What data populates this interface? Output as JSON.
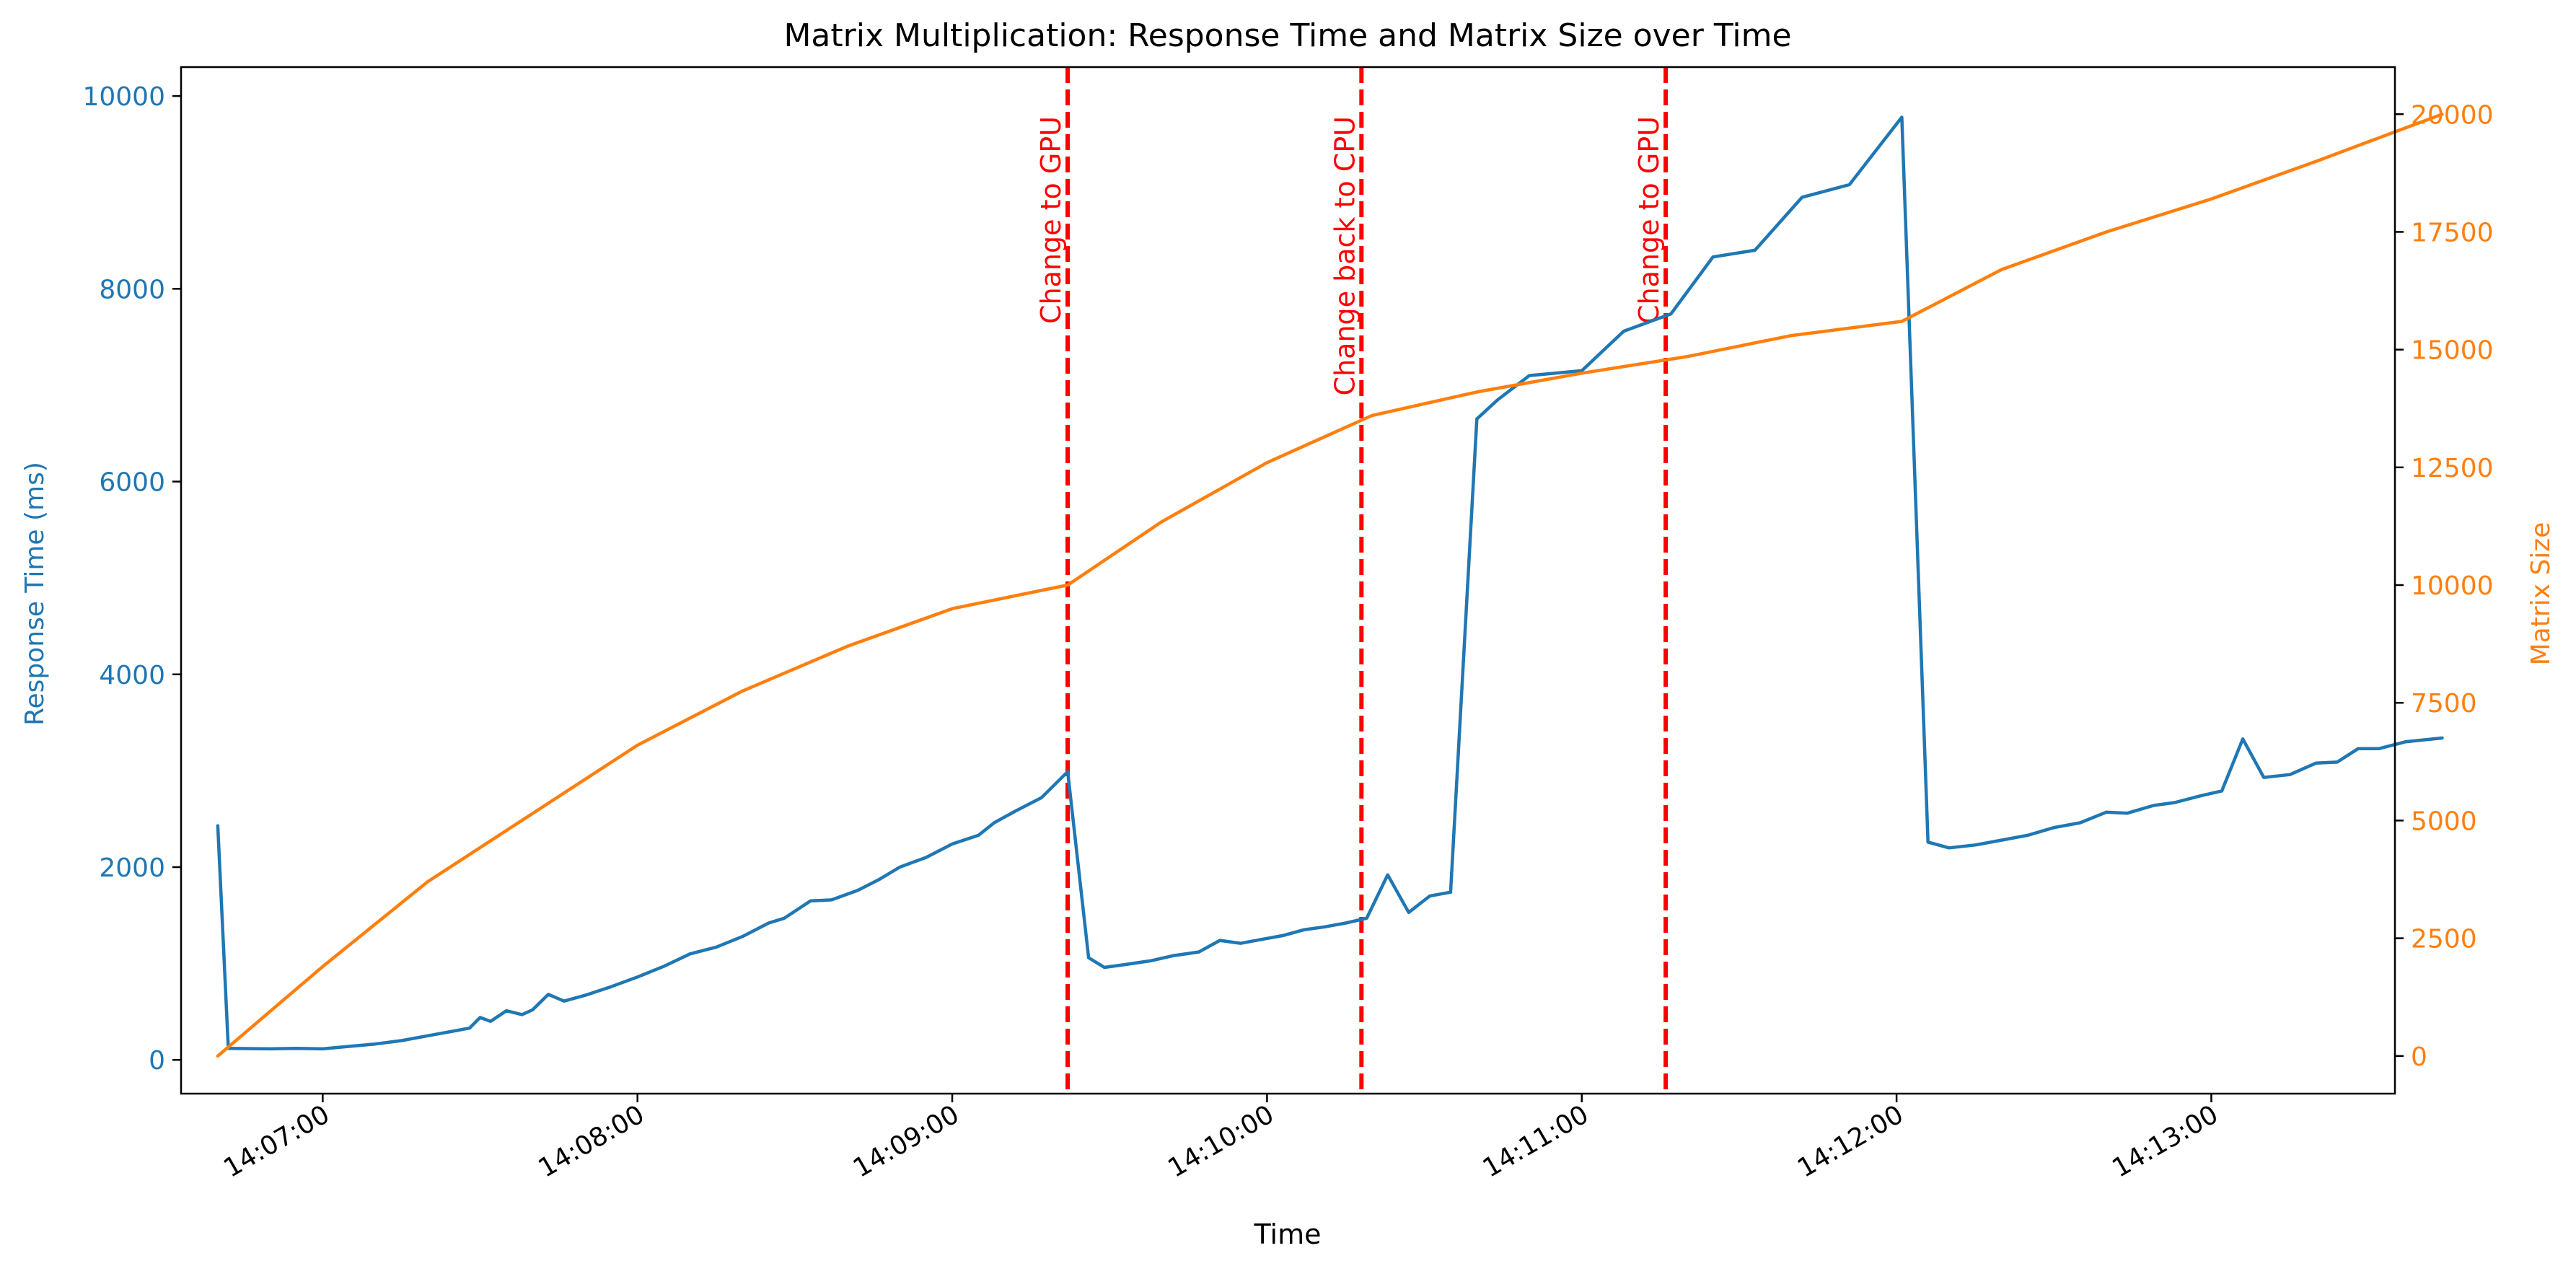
{
  "chart_data": {
    "type": "line",
    "title": "Matrix Multiplication: Response Time and Matrix Size over Time",
    "xlabel": "Time",
    "ylabel_left": "Response Time (ms)",
    "ylabel_right": "Matrix Size",
    "x_ticks": [
      "14:07:00",
      "14:08:00",
      "14:09:00",
      "14:10:00",
      "14:11:00",
      "14:12:00",
      "14:13:00"
    ],
    "x_range": [
      "14:06:33",
      "14:13:35"
    ],
    "ylim_left": [
      -350,
      10300
    ],
    "ylim_right": [
      -800,
      21000
    ],
    "y_ticks_left": [
      0,
      2000,
      4000,
      6000,
      8000,
      10000
    ],
    "y_ticks_right": [
      0,
      2500,
      5000,
      7500,
      10000,
      12500,
      15000,
      17500,
      20000
    ],
    "grid": false,
    "colors": {
      "left": "#1f77b4",
      "right": "#ff7f0e",
      "events": "#ff0000"
    },
    "series": [
      {
        "name": "Response Time (ms)",
        "axis": "left",
        "color": "#1f77b4",
        "points": [
          [
            "14:06:40",
            2430
          ],
          [
            "14:06:42",
            120
          ],
          [
            "14:06:50",
            115
          ],
          [
            "14:06:55",
            120
          ],
          [
            "14:07:00",
            115
          ],
          [
            "14:07:05",
            140
          ],
          [
            "14:07:10",
            165
          ],
          [
            "14:07:15",
            200
          ],
          [
            "14:07:20",
            250
          ],
          [
            "14:07:25",
            300
          ],
          [
            "14:07:28",
            330
          ],
          [
            "14:07:30",
            440
          ],
          [
            "14:07:32",
            400
          ],
          [
            "14:07:35",
            510
          ],
          [
            "14:07:38",
            470
          ],
          [
            "14:07:40",
            520
          ],
          [
            "14:07:43",
            680
          ],
          [
            "14:07:46",
            610
          ],
          [
            "14:07:50",
            670
          ],
          [
            "14:07:55",
            760
          ],
          [
            "14:08:00",
            860
          ],
          [
            "14:08:05",
            970
          ],
          [
            "14:08:10",
            1100
          ],
          [
            "14:08:15",
            1170
          ],
          [
            "14:08:20",
            1280
          ],
          [
            "14:08:25",
            1420
          ],
          [
            "14:08:28",
            1470
          ],
          [
            "14:08:33",
            1650
          ],
          [
            "14:08:37",
            1660
          ],
          [
            "14:08:42",
            1760
          ],
          [
            "14:08:46",
            1870
          ],
          [
            "14:08:50",
            2000
          ],
          [
            "14:08:55",
            2100
          ],
          [
            "14:09:00",
            2240
          ],
          [
            "14:09:05",
            2330
          ],
          [
            "14:09:08",
            2460
          ],
          [
            "14:09:12",
            2580
          ],
          [
            "14:09:17",
            2720
          ],
          [
            "14:09:22",
            2990
          ],
          [
            "14:09:26",
            1060
          ],
          [
            "14:09:29",
            960
          ],
          [
            "14:09:33",
            990
          ],
          [
            "14:09:38",
            1030
          ],
          [
            "14:09:42",
            1080
          ],
          [
            "14:09:47",
            1120
          ],
          [
            "14:09:51",
            1240
          ],
          [
            "14:09:55",
            1210
          ],
          [
            "14:09:59",
            1250
          ],
          [
            "14:10:03",
            1290
          ],
          [
            "14:10:07",
            1350
          ],
          [
            "14:10:11",
            1380
          ],
          [
            "14:10:15",
            1420
          ],
          [
            "14:10:19",
            1470
          ],
          [
            "14:10:23",
            1920
          ],
          [
            "14:10:27",
            1530
          ],
          [
            "14:10:31",
            1700
          ],
          [
            "14:10:35",
            1740
          ],
          [
            "14:10:40",
            6650
          ],
          [
            "14:10:44",
            6850
          ],
          [
            "14:10:50",
            7100
          ],
          [
            "14:11:00",
            7150
          ],
          [
            "14:11:08",
            7560
          ],
          [
            "14:11:17",
            7740
          ],
          [
            "14:11:25",
            8330
          ],
          [
            "14:11:33",
            8400
          ],
          [
            "14:11:42",
            8950
          ],
          [
            "14:11:51",
            9080
          ],
          [
            "14:12:01",
            9780
          ],
          [
            "14:12:06",
            2260
          ],
          [
            "14:12:10",
            2200
          ],
          [
            "14:12:15",
            2230
          ],
          [
            "14:12:20",
            2280
          ],
          [
            "14:12:25",
            2330
          ],
          [
            "14:12:30",
            2410
          ],
          [
            "14:12:35",
            2460
          ],
          [
            "14:12:40",
            2570
          ],
          [
            "14:12:44",
            2560
          ],
          [
            "14:12:49",
            2640
          ],
          [
            "14:12:53",
            2670
          ],
          [
            "14:12:58",
            2740
          ],
          [
            "14:13:02",
            2790
          ],
          [
            "14:13:06",
            3330
          ],
          [
            "14:13:10",
            2930
          ],
          [
            "14:13:15",
            2960
          ],
          [
            "14:13:20",
            3080
          ],
          [
            "14:13:24",
            3090
          ],
          [
            "14:13:28",
            3230
          ],
          [
            "14:13:32",
            3230
          ],
          [
            "14:13:37",
            3300
          ],
          [
            "14:13:44",
            3340
          ]
        ]
      },
      {
        "name": "Matrix Size",
        "axis": "right",
        "color": "#ff7f0e",
        "points": [
          [
            "14:06:40",
            0
          ],
          [
            "14:07:00",
            1900
          ],
          [
            "14:07:20",
            3700
          ],
          [
            "14:07:40",
            5150
          ],
          [
            "14:08:00",
            6600
          ],
          [
            "14:08:20",
            7750
          ],
          [
            "14:08:40",
            8700
          ],
          [
            "14:09:00",
            9500
          ],
          [
            "14:09:22",
            10000
          ],
          [
            "14:09:40",
            11350
          ],
          [
            "14:10:00",
            12600
          ],
          [
            "14:10:20",
            13600
          ],
          [
            "14:10:40",
            14100
          ],
          [
            "14:11:00",
            14500
          ],
          [
            "14:11:20",
            14850
          ],
          [
            "14:11:40",
            15300
          ],
          [
            "14:12:01",
            15600
          ],
          [
            "14:12:20",
            16700
          ],
          [
            "14:12:40",
            17500
          ],
          [
            "14:13:00",
            18200
          ],
          [
            "14:13:20",
            19000
          ],
          [
            "14:13:44",
            20000
          ]
        ]
      }
    ],
    "events": [
      {
        "time": "14:09:22",
        "label": "Change to GPU"
      },
      {
        "time": "14:10:18",
        "label": "Change back to CPU"
      },
      {
        "time": "14:11:16",
        "label": "Change to GPU"
      }
    ]
  }
}
